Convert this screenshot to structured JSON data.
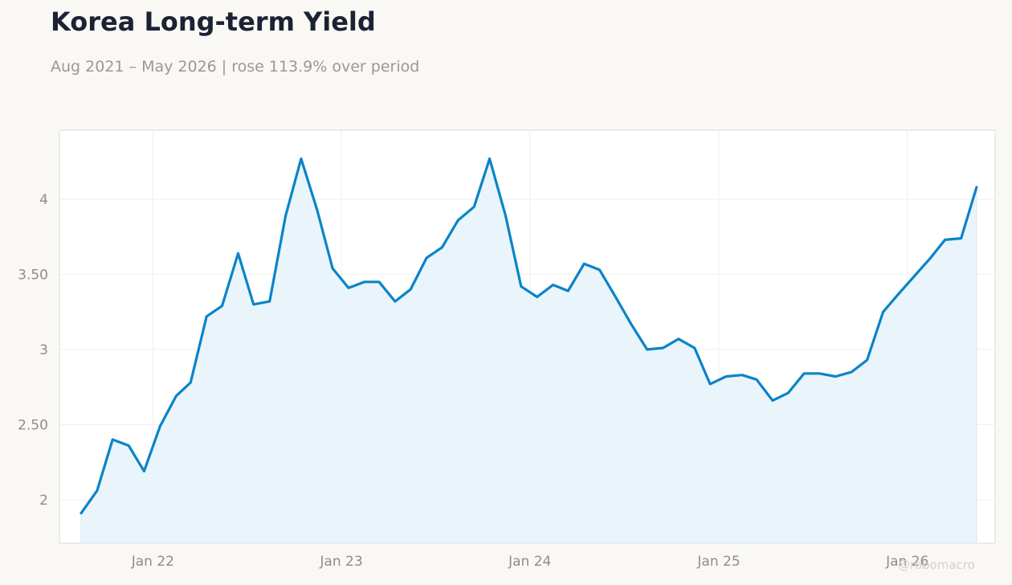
{
  "header": {
    "title": "Korea Long-term Yield",
    "subtitle": "Aug 2021 – May 2026 | rose 113.9% over period"
  },
  "watermark": "@robomacro",
  "colors": {
    "background": "#f9f8f5",
    "plot_background": "#ffffff",
    "line": "#0a84c8",
    "fill": "#eaf4fb",
    "grid": "#efefef",
    "title": "#1c2233",
    "muted_text": "#9a9895"
  },
  "chart_data": {
    "type": "area",
    "title": "Korea Long-term Yield",
    "subtitle": "Aug 2021 – May 2026 | rose 113.9% over period",
    "xlabel": "",
    "ylabel": "",
    "grid": true,
    "legend": "none",
    "xlim": [
      "2021-07-04",
      "2026-06-20"
    ],
    "ylim": [
      1.71,
      4.46
    ],
    "x_ticks": [
      {
        "date": "2022-01-01",
        "label": "Jan 22"
      },
      {
        "date": "2023-01-01",
        "label": "Jan 23"
      },
      {
        "date": "2024-01-01",
        "label": "Jan 24"
      },
      {
        "date": "2025-01-01",
        "label": "Jan 25"
      },
      {
        "date": "2026-01-01",
        "label": "Jan 26"
      }
    ],
    "y_ticks": [
      {
        "value": 2,
        "label": "2"
      },
      {
        "value": 2.5,
        "label": "2.50"
      },
      {
        "value": 3,
        "label": "3"
      },
      {
        "value": 3.5,
        "label": "3.50"
      },
      {
        "value": 4,
        "label": "4"
      }
    ],
    "series": [
      {
        "x": [
          "2021-08",
          "2021-09",
          "2021-10",
          "2021-11",
          "2021-12",
          "2022-01",
          "2022-02",
          "2022-03",
          "2022-04",
          "2022-05",
          "2022-06",
          "2022-07",
          "2022-08",
          "2022-09",
          "2022-10",
          "2022-11",
          "2022-12",
          "2023-01",
          "2023-02",
          "2023-03",
          "2023-04",
          "2023-05",
          "2023-06",
          "2023-07",
          "2023-08",
          "2023-09",
          "2023-10",
          "2023-11",
          "2023-12",
          "2024-01",
          "2024-02",
          "2024-03",
          "2024-04",
          "2024-05",
          "2024-06",
          "2024-07",
          "2024-08",
          "2024-09",
          "2024-10",
          "2024-11",
          "2024-12",
          "2025-01",
          "2025-02",
          "2025-03",
          "2025-04",
          "2025-05",
          "2025-06",
          "2025-07",
          "2025-08",
          "2025-09",
          "2025-10",
          "2025-11",
          "2025-12",
          "2026-01",
          "2026-02",
          "2026-03",
          "2026-04",
          "2026-05"
        ],
        "y": [
          1.91,
          2.06,
          2.4,
          2.36,
          2.19,
          2.49,
          2.69,
          2.78,
          3.22,
          3.29,
          3.64,
          3.3,
          3.32,
          3.89,
          4.27,
          3.93,
          3.54,
          3.41,
          3.45,
          3.45,
          3.32,
          3.4,
          3.61,
          3.68,
          3.86,
          3.95,
          4.27,
          3.89,
          3.42,
          3.35,
          3.43,
          3.39,
          3.57,
          3.53,
          3.35,
          3.17,
          3.0,
          3.01,
          3.07,
          3.01,
          2.77,
          2.82,
          2.83,
          2.8,
          2.66,
          2.71,
          2.84,
          2.84,
          2.82,
          2.85,
          2.93,
          3.25,
          3.37,
          3.49,
          3.61,
          3.73,
          3.74,
          4.08
        ]
      }
    ]
  }
}
